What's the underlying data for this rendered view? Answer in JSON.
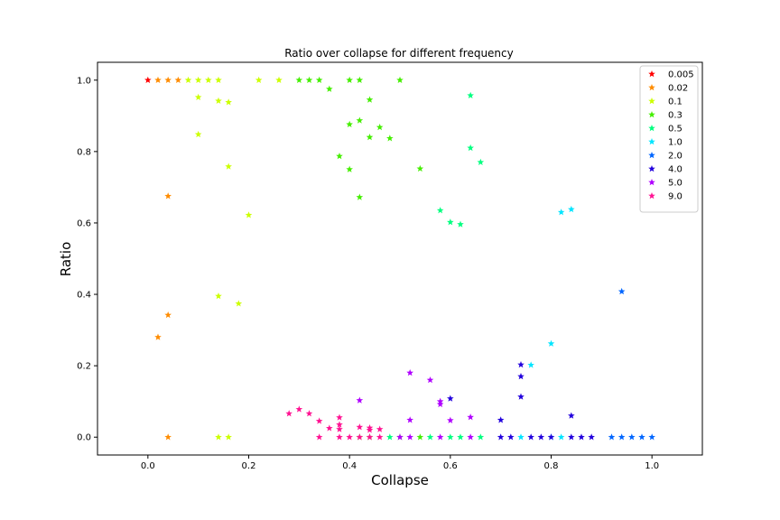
{
  "chart_data": {
    "type": "scatter",
    "title": "Ratio over collapse for different frequency",
    "xlabel": "Collapse",
    "ylabel": "Ratio",
    "xlim": [
      -0.1,
      1.1
    ],
    "ylim": [
      -0.05,
      1.05
    ],
    "xticks": [
      "0.0",
      "0.2",
      "0.4",
      "0.6",
      "0.8",
      "1.0"
    ],
    "yticks": [
      "0.0",
      "0.2",
      "0.4",
      "0.6",
      "0.8",
      "1.0"
    ],
    "grid": false,
    "legend_position": "top-right",
    "marker": "star",
    "series": [
      {
        "name": "0.005",
        "color": "#ff0000",
        "points": [
          [
            0.0,
            1.0
          ]
        ]
      },
      {
        "name": "0.02",
        "color": "#ff8c00",
        "points": [
          [
            0.02,
            1.0
          ],
          [
            0.04,
            1.0
          ],
          [
            0.06,
            1.0
          ],
          [
            0.04,
            0.675
          ],
          [
            0.04,
            0.342
          ],
          [
            0.02,
            0.28
          ],
          [
            0.04,
            0.0
          ]
        ]
      },
      {
        "name": "0.1",
        "color": "#ccff00",
        "points": [
          [
            0.08,
            1.0
          ],
          [
            0.1,
            1.0
          ],
          [
            0.12,
            1.0
          ],
          [
            0.14,
            1.0
          ],
          [
            0.22,
            1.0
          ],
          [
            0.26,
            1.0
          ],
          [
            0.1,
            0.952
          ],
          [
            0.14,
            0.942
          ],
          [
            0.16,
            0.938
          ],
          [
            0.1,
            0.848
          ],
          [
            0.16,
            0.758
          ],
          [
            0.2,
            0.622
          ],
          [
            0.14,
            0.395
          ],
          [
            0.18,
            0.374
          ],
          [
            0.14,
            0.0
          ],
          [
            0.16,
            0.0
          ]
        ]
      },
      {
        "name": "0.3",
        "color": "#44ee00",
        "points": [
          [
            0.3,
            1.0
          ],
          [
            0.32,
            1.0
          ],
          [
            0.34,
            1.0
          ],
          [
            0.4,
            1.0
          ],
          [
            0.42,
            1.0
          ],
          [
            0.5,
            1.0
          ],
          [
            0.36,
            0.975
          ],
          [
            0.44,
            0.945
          ],
          [
            0.42,
            0.887
          ],
          [
            0.4,
            0.876
          ],
          [
            0.46,
            0.868
          ],
          [
            0.44,
            0.84
          ],
          [
            0.48,
            0.837
          ],
          [
            0.38,
            0.787
          ],
          [
            0.4,
            0.75
          ],
          [
            0.54,
            0.752
          ],
          [
            0.42,
            0.672
          ],
          [
            0.42,
            0.0
          ],
          [
            0.44,
            0.0
          ],
          [
            0.5,
            0.0
          ],
          [
            0.54,
            0.0
          ]
        ]
      },
      {
        "name": "0.5",
        "color": "#00ff7f",
        "points": [
          [
            0.64,
            0.957
          ],
          [
            0.64,
            0.81
          ],
          [
            0.66,
            0.77
          ],
          [
            0.58,
            0.635
          ],
          [
            0.6,
            0.602
          ],
          [
            0.62,
            0.596
          ],
          [
            0.48,
            0.0
          ],
          [
            0.56,
            0.0
          ],
          [
            0.6,
            0.0
          ],
          [
            0.62,
            0.0
          ],
          [
            0.66,
            0.0
          ]
        ]
      },
      {
        "name": "1.0",
        "color": "#00e5ff",
        "points": [
          [
            0.84,
            0.638
          ],
          [
            0.82,
            0.63
          ],
          [
            0.8,
            0.262
          ],
          [
            0.76,
            0.202
          ],
          [
            0.74,
            0.0
          ],
          [
            0.8,
            0.0
          ],
          [
            0.82,
            0.0
          ]
        ]
      },
      {
        "name": "2.0",
        "color": "#0066ff",
        "points": [
          [
            0.94,
            0.408
          ],
          [
            0.92,
            0.0
          ],
          [
            0.94,
            0.0
          ],
          [
            0.96,
            0.0
          ],
          [
            0.98,
            0.0
          ],
          [
            1.0,
            0.0
          ]
        ]
      },
      {
        "name": "4.0",
        "color": "#2200dd",
        "points": [
          [
            0.74,
            0.203
          ],
          [
            0.74,
            0.17
          ],
          [
            0.74,
            0.113
          ],
          [
            0.6,
            0.108
          ],
          [
            0.84,
            0.06
          ],
          [
            0.7,
            0.048
          ],
          [
            0.7,
            0.0
          ],
          [
            0.72,
            0.0
          ],
          [
            0.76,
            0.0
          ],
          [
            0.78,
            0.0
          ],
          [
            0.8,
            0.0
          ],
          [
            0.84,
            0.0
          ],
          [
            0.86,
            0.0
          ],
          [
            0.88,
            0.0
          ]
        ]
      },
      {
        "name": "5.0",
        "color": "#b000ff",
        "points": [
          [
            0.52,
            0.18
          ],
          [
            0.56,
            0.16
          ],
          [
            0.42,
            0.103
          ],
          [
            0.58,
            0.1
          ],
          [
            0.58,
            0.092
          ],
          [
            0.52,
            0.048
          ],
          [
            0.6,
            0.047
          ],
          [
            0.64,
            0.056
          ],
          [
            0.5,
            0.0
          ],
          [
            0.52,
            0.0
          ],
          [
            0.58,
            0.0
          ],
          [
            0.64,
            0.0
          ]
        ]
      },
      {
        "name": "9.0",
        "color": "#ff1493",
        "points": [
          [
            0.28,
            0.066
          ],
          [
            0.3,
            0.078
          ],
          [
            0.32,
            0.066
          ],
          [
            0.34,
            0.045
          ],
          [
            0.36,
            0.025
          ],
          [
            0.38,
            0.055
          ],
          [
            0.38,
            0.035
          ],
          [
            0.38,
            0.022
          ],
          [
            0.42,
            0.028
          ],
          [
            0.44,
            0.026
          ],
          [
            0.44,
            0.02
          ],
          [
            0.46,
            0.022
          ],
          [
            0.34,
            0.0
          ],
          [
            0.38,
            0.0
          ],
          [
            0.4,
            0.0
          ],
          [
            0.42,
            0.0
          ],
          [
            0.44,
            0.0
          ],
          [
            0.46,
            0.0
          ]
        ]
      }
    ]
  }
}
